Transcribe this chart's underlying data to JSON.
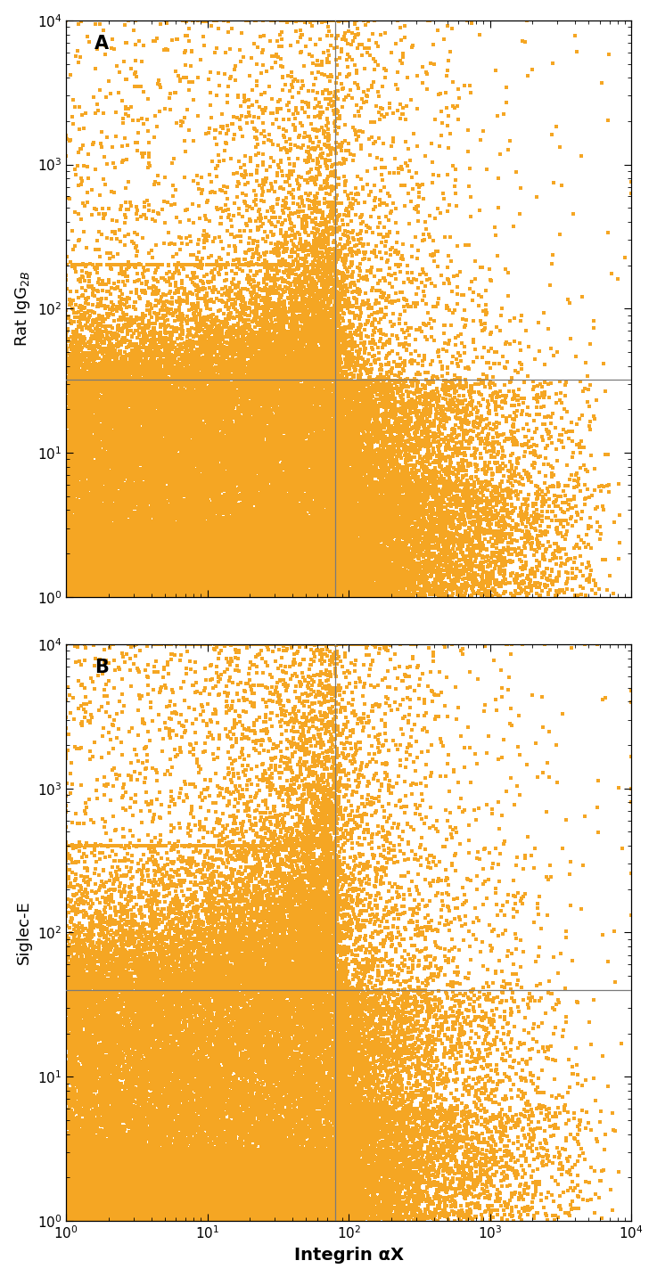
{
  "panel_A": {
    "label": "A",
    "ylabel": "Rat IgG$_{2B}$",
    "hline_y": 32,
    "vline_x": 80,
    "seed": 42
  },
  "panel_B": {
    "label": "B",
    "ylabel": "Siglec-E",
    "hline_y": 40,
    "vline_x": 80,
    "seed": 7
  },
  "xlabel": "Integrin αX",
  "xlim": [
    1,
    10000
  ],
  "ylim": [
    1,
    10000
  ],
  "line_color": "#7a7a7a",
  "background_color": "#ffffff",
  "dot_color": "#F5A623",
  "dot_size": 9.0,
  "dot_marker": "s"
}
